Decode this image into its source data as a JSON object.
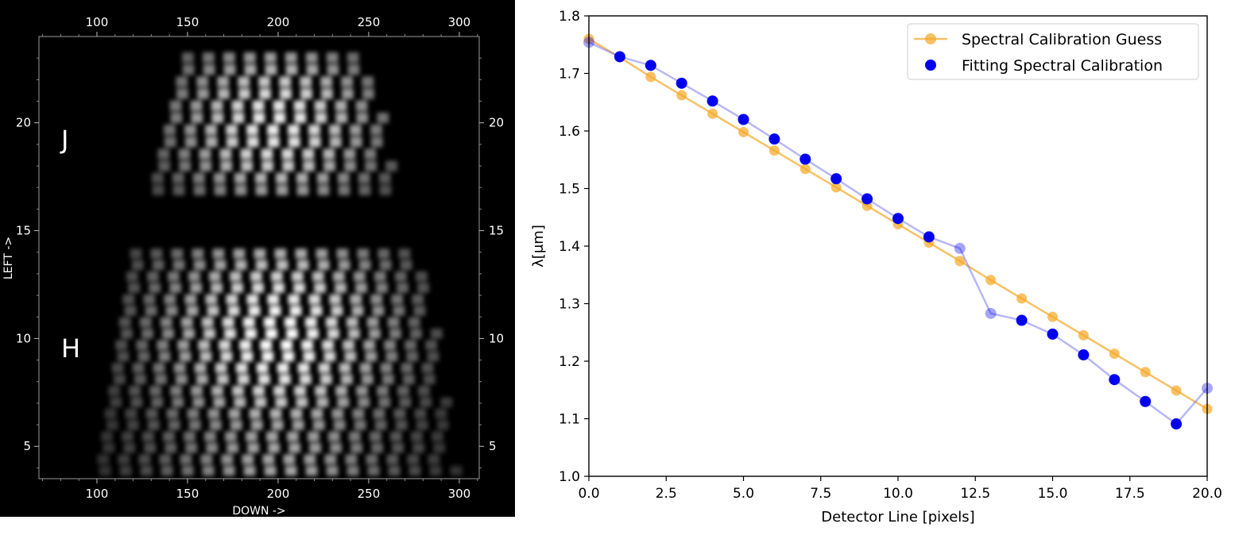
{
  "chart_data": [
    {
      "type": "heatmap",
      "xlabel": "DOWN ->",
      "ylabel": "LEFT ->",
      "xlim": [
        68,
        311
      ],
      "ylim": [
        3.5,
        24
      ],
      "xticks": [
        100,
        150,
        200,
        250,
        300
      ],
      "yticks": [
        5,
        10,
        15,
        20
      ],
      "annotations": [
        {
          "text": "J",
          "x": 85,
          "y": 19.2
        },
        {
          "text": "H",
          "x": 85,
          "y": 9.5
        }
      ],
      "colors": {
        "background": "#000000",
        "intensity": "#ffffff"
      }
    },
    {
      "type": "line",
      "xlabel": "Detector Line [pixels]",
      "ylabel": "λ[μm]",
      "xlim": [
        0,
        20
      ],
      "ylim": [
        1.0,
        1.8
      ],
      "xticks": [
        0.0,
        2.5,
        5.0,
        7.5,
        10.0,
        12.5,
        15.0,
        17.5,
        20.0
      ],
      "yticks": [
        1.0,
        1.1,
        1.2,
        1.3,
        1.4,
        1.5,
        1.6,
        1.7,
        1.8
      ],
      "legend_position": "top-right",
      "series": [
        {
          "name": "Spectral Calibration Guess",
          "color": "#f5a623",
          "style": "line-marker",
          "x": [
            0,
            1,
            2,
            3,
            4,
            5,
            6,
            7,
            8,
            9,
            10,
            11,
            12,
            13,
            14,
            15,
            16,
            17,
            18,
            19,
            20
          ],
          "y": [
            1.76,
            1.728,
            1.694,
            1.662,
            1.63,
            1.598,
            1.566,
            1.534,
            1.502,
            1.47,
            1.438,
            1.406,
            1.374,
            1.341,
            1.309,
            1.277,
            1.245,
            1.213,
            1.181,
            1.149,
            1.117
          ]
        },
        {
          "name": "Fitting Spectral Calibration",
          "color": "#0000ee",
          "style": "marker",
          "x": [
            0,
            1,
            2,
            3,
            4,
            5,
            6,
            7,
            8,
            9,
            10,
            11,
            12,
            13,
            14,
            15,
            16,
            17,
            18,
            19,
            20
          ],
          "y": [
            1.754,
            1.729,
            1.714,
            1.683,
            1.652,
            1.62,
            1.586,
            1.551,
            1.517,
            1.482,
            1.448,
            1.416,
            1.396,
            1.283,
            1.271,
            1.247,
            1.211,
            1.168,
            1.13,
            1.091,
            1.153
          ],
          "faded_points_x": [
            0,
            12,
            13,
            20
          ]
        }
      ]
    }
  ]
}
